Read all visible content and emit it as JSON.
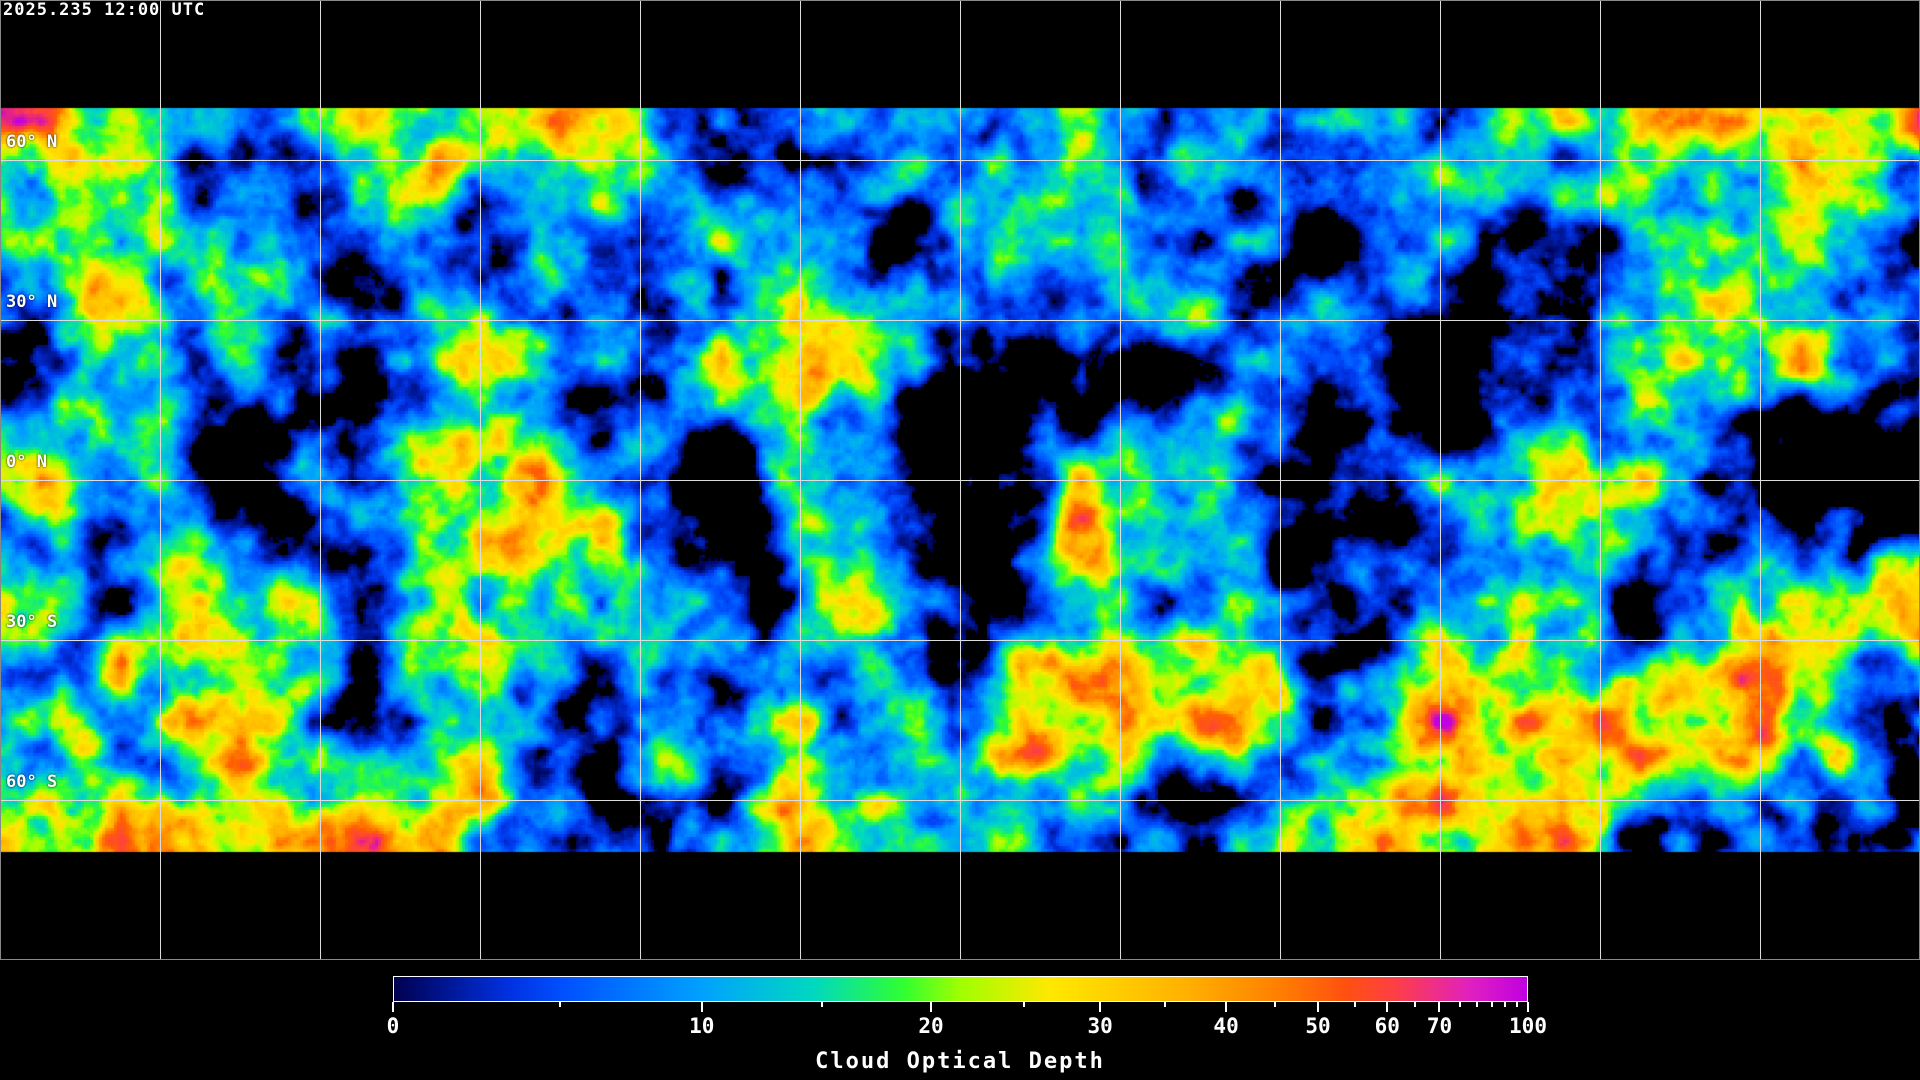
{
  "timestamp": "2025.235 12:00 UTC",
  "map": {
    "latitude_labels": [
      "60° N",
      "30° N",
      "0° N",
      "30° S",
      "60° S"
    ],
    "latitude_values": [
      60,
      30,
      0,
      -30,
      -60
    ],
    "longitude_gridlines_deg": [
      -150,
      -120,
      -90,
      -60,
      -30,
      0,
      30,
      60,
      90,
      120,
      150
    ]
  },
  "colorbar": {
    "title": "Cloud Optical Depth",
    "tick_labels": [
      "0",
      "10",
      "20",
      "30",
      "40",
      "50",
      "60",
      "70",
      "100"
    ],
    "tick_values": [
      0,
      10,
      20,
      30,
      40,
      50,
      60,
      70,
      100
    ],
    "range": [
      0,
      100
    ],
    "colors": [
      "#000050",
      "#0050ff",
      "#00a0ff",
      "#30ff30",
      "#ffe800",
      "#ff8000",
      "#ff4040",
      "#c000e0"
    ]
  }
}
